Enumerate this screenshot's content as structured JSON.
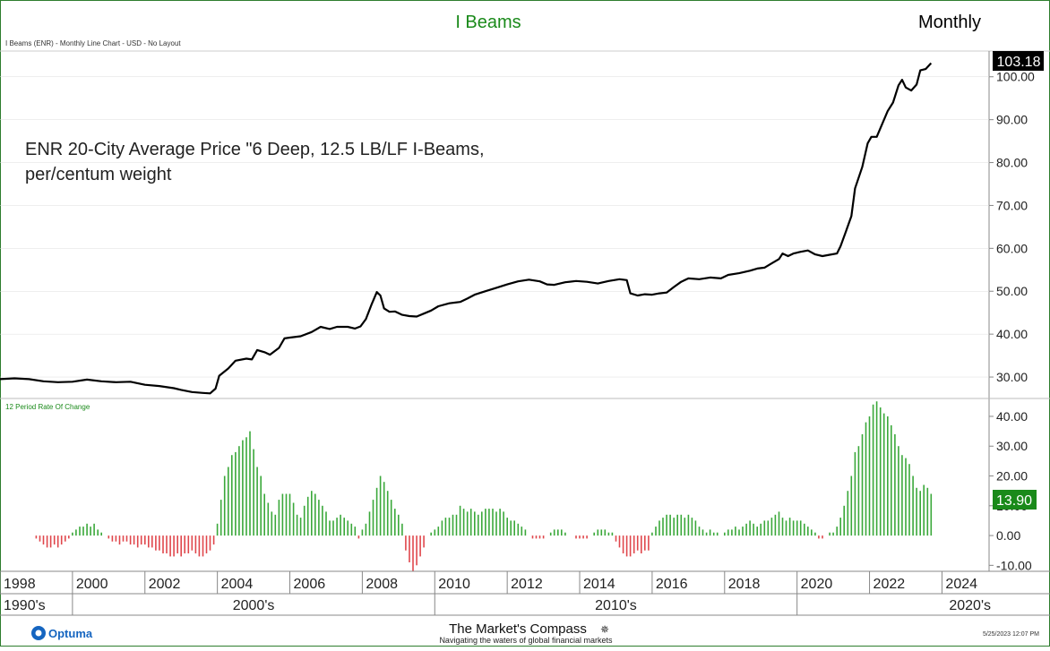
{
  "header": {
    "title": "I Beams",
    "period": "Monthly",
    "subtitle": "I Beams (ENR) - Monthly Line Chart - USD - No Layout"
  },
  "colors": {
    "title": "#1a8a1a",
    "line": "#000000",
    "positive": "#3aa83a",
    "negative": "#e0474c",
    "frame": "#2e7d2e",
    "grid": "#dddddd"
  },
  "footer": {
    "left_logo": "Optuma",
    "brand": "The Market's Compass",
    "tagline": "Navigating the waters of global financial markets",
    "timestamp": "5/25/2023 12:07 PM"
  },
  "chart_data": [
    {
      "type": "line",
      "annotation": "ENR 20-City Average Price \"6 Deep, 12.5 LB/LF I-Beams, per/centum weight",
      "last_value_label": "103.18",
      "ylim": [
        25,
        106
      ],
      "yticks": [
        "30.00",
        "40.00",
        "50.00",
        "60.00",
        "70.00",
        "80.00",
        "90.00",
        "100.00"
      ],
      "xlim": [
        1998.0,
        2025.3
      ],
      "x_ticks": [
        "1998",
        "2000",
        "2002",
        "2004",
        "2006",
        "2008",
        "2010",
        "2012",
        "2014",
        "2016",
        "2018",
        "2020",
        "2022",
        "2024"
      ],
      "decades": [
        "1990's",
        "2000's",
        "2010's",
        "2020's"
      ],
      "series": [
        {
          "values": [
            [
              1998.0,
              29.5
            ],
            [
              1998.4,
              29.7
            ],
            [
              1998.8,
              29.5
            ],
            [
              1999.2,
              29.0
            ],
            [
              1999.6,
              28.8
            ],
            [
              2000.0,
              28.9
            ],
            [
              2000.4,
              29.4
            ],
            [
              2000.8,
              29.0
            ],
            [
              2001.2,
              28.8
            ],
            [
              2001.6,
              28.9
            ],
            [
              2002.0,
              28.2
            ],
            [
              2002.4,
              27.9
            ],
            [
              2002.8,
              27.4
            ],
            [
              2003.0,
              27.0
            ],
            [
              2003.3,
              26.5
            ],
            [
              2003.6,
              26.3
            ],
            [
              2003.8,
              26.2
            ],
            [
              2003.95,
              27.3
            ],
            [
              2004.05,
              30.3
            ],
            [
              2004.3,
              32.0
            ],
            [
              2004.5,
              33.8
            ],
            [
              2004.8,
              34.3
            ],
            [
              2004.95,
              34.1
            ],
            [
              2005.1,
              36.3
            ],
            [
              2005.3,
              35.8
            ],
            [
              2005.45,
              35.2
            ],
            [
              2005.7,
              36.8
            ],
            [
              2005.85,
              39.0
            ],
            [
              2006.0,
              39.2
            ],
            [
              2006.3,
              39.5
            ],
            [
              2006.6,
              40.5
            ],
            [
              2006.85,
              41.7
            ],
            [
              2007.1,
              41.2
            ],
            [
              2007.3,
              41.7
            ],
            [
              2007.6,
              41.7
            ],
            [
              2007.8,
              41.3
            ],
            [
              2007.95,
              41.8
            ],
            [
              2008.1,
              43.5
            ],
            [
              2008.25,
              46.8
            ],
            [
              2008.4,
              49.8
            ],
            [
              2008.5,
              49.0
            ],
            [
              2008.6,
              46.0
            ],
            [
              2008.75,
              45.2
            ],
            [
              2008.9,
              45.3
            ],
            [
              2009.1,
              44.5
            ],
            [
              2009.3,
              44.2
            ],
            [
              2009.5,
              44.1
            ],
            [
              2009.7,
              44.8
            ],
            [
              2009.9,
              45.5
            ],
            [
              2010.1,
              46.5
            ],
            [
              2010.4,
              47.2
            ],
            [
              2010.7,
              47.5
            ],
            [
              2010.9,
              48.3
            ],
            [
              2011.1,
              49.2
            ],
            [
              2011.4,
              50.0
            ],
            [
              2011.7,
              50.8
            ],
            [
              2012.0,
              51.6
            ],
            [
              2012.3,
              52.3
            ],
            [
              2012.6,
              52.7
            ],
            [
              2012.9,
              52.3
            ],
            [
              2013.1,
              51.6
            ],
            [
              2013.3,
              51.5
            ],
            [
              2013.6,
              52.1
            ],
            [
              2013.9,
              52.4
            ],
            [
              2014.2,
              52.2
            ],
            [
              2014.5,
              51.8
            ],
            [
              2014.8,
              52.4
            ],
            [
              2015.1,
              52.8
            ],
            [
              2015.3,
              52.6
            ],
            [
              2015.4,
              49.5
            ],
            [
              2015.6,
              49.0
            ],
            [
              2015.8,
              49.3
            ],
            [
              2016.0,
              49.2
            ],
            [
              2016.2,
              49.5
            ],
            [
              2016.4,
              49.7
            ],
            [
              2016.6,
              51.0
            ],
            [
              2016.8,
              52.2
            ],
            [
              2017.0,
              53.0
            ],
            [
              2017.3,
              52.8
            ],
            [
              2017.6,
              53.2
            ],
            [
              2017.9,
              53.0
            ],
            [
              2018.1,
              53.8
            ],
            [
              2018.4,
              54.2
            ],
            [
              2018.7,
              54.8
            ],
            [
              2018.9,
              55.3
            ],
            [
              2019.1,
              55.5
            ],
            [
              2019.3,
              56.5
            ],
            [
              2019.5,
              57.5
            ],
            [
              2019.6,
              58.8
            ],
            [
              2019.75,
              58.2
            ],
            [
              2019.9,
              58.8
            ],
            [
              2020.1,
              59.2
            ],
            [
              2020.3,
              59.5
            ],
            [
              2020.5,
              58.6
            ],
            [
              2020.7,
              58.2
            ],
            [
              2020.9,
              58.5
            ],
            [
              2021.1,
              58.8
            ],
            [
              2021.2,
              60.5
            ],
            [
              2021.35,
              64.0
            ],
            [
              2021.5,
              67.5
            ],
            [
              2021.6,
              74.0
            ],
            [
              2021.8,
              79.0
            ],
            [
              2021.95,
              84.5
            ],
            [
              2022.05,
              86.0
            ],
            [
              2022.2,
              86.0
            ],
            [
              2022.35,
              89.0
            ],
            [
              2022.5,
              92.0
            ],
            [
              2022.65,
              94.0
            ],
            [
              2022.8,
              98.0
            ],
            [
              2022.9,
              99.3
            ],
            [
              2023.0,
              97.5
            ],
            [
              2023.15,
              96.8
            ],
            [
              2023.3,
              98.2
            ],
            [
              2023.4,
              101.5
            ],
            [
              2023.55,
              101.8
            ],
            [
              2023.7,
              103.18
            ]
          ]
        }
      ]
    },
    {
      "type": "bar",
      "title": "12 Period Rate Of Change",
      "last_value_label": "13.90",
      "ylim": [
        -12,
        46
      ],
      "yticks": [
        "-10.00",
        "0.00",
        "10.00",
        "20.00",
        "30.00",
        "40.00"
      ],
      "x": [
        1999.0,
        1999.1,
        1999.2,
        1999.3,
        1999.4,
        1999.5,
        1999.6,
        1999.7,
        1999.8,
        1999.9,
        2000.0,
        2000.1,
        2000.2,
        2000.3,
        2000.4,
        2000.5,
        2000.6,
        2000.7,
        2000.8,
        2000.9,
        2001.0,
        2001.1,
        2001.2,
        2001.3,
        2001.4,
        2001.5,
        2001.6,
        2001.7,
        2001.8,
        2001.9,
        2002.0,
        2002.1,
        2002.2,
        2002.3,
        2002.4,
        2002.5,
        2002.6,
        2002.7,
        2002.8,
        2002.9,
        2003.0,
        2003.1,
        2003.2,
        2003.3,
        2003.4,
        2003.5,
        2003.6,
        2003.7,
        2003.8,
        2003.9,
        2004.0,
        2004.1,
        2004.2,
        2004.3,
        2004.4,
        2004.5,
        2004.6,
        2004.7,
        2004.8,
        2004.9,
        2005.0,
        2005.1,
        2005.2,
        2005.3,
        2005.4,
        2005.5,
        2005.6,
        2005.7,
        2005.8,
        2005.9,
        2006.0,
        2006.1,
        2006.2,
        2006.3,
        2006.4,
        2006.5,
        2006.6,
        2006.7,
        2006.8,
        2006.9,
        2007.0,
        2007.1,
        2007.2,
        2007.3,
        2007.4,
        2007.5,
        2007.6,
        2007.7,
        2007.8,
        2007.9,
        2008.0,
        2008.1,
        2008.2,
        2008.3,
        2008.4,
        2008.5,
        2008.6,
        2008.7,
        2008.8,
        2008.9,
        2009.0,
        2009.1,
        2009.2,
        2009.3,
        2009.4,
        2009.5,
        2009.6,
        2009.7,
        2009.8,
        2009.9,
        2010.0,
        2010.1,
        2010.2,
        2010.3,
        2010.4,
        2010.5,
        2010.6,
        2010.7,
        2010.8,
        2010.9,
        2011.0,
        2011.1,
        2011.2,
        2011.3,
        2011.4,
        2011.5,
        2011.6,
        2011.7,
        2011.8,
        2011.9,
        2012.0,
        2012.1,
        2012.2,
        2012.3,
        2012.4,
        2012.5,
        2012.6,
        2012.7,
        2012.8,
        2012.9,
        2013.0,
        2013.1,
        2013.2,
        2013.3,
        2013.4,
        2013.5,
        2013.6,
        2013.7,
        2013.8,
        2013.9,
        2014.0,
        2014.1,
        2014.2,
        2014.3,
        2014.4,
        2014.5,
        2014.6,
        2014.7,
        2014.8,
        2014.9,
        2015.0,
        2015.1,
        2015.2,
        2015.3,
        2015.4,
        2015.5,
        2015.6,
        2015.7,
        2015.8,
        2015.9,
        2016.0,
        2016.1,
        2016.2,
        2016.3,
        2016.4,
        2016.5,
        2016.6,
        2016.7,
        2016.8,
        2016.9,
        2017.0,
        2017.1,
        2017.2,
        2017.3,
        2017.4,
        2017.5,
        2017.6,
        2017.7,
        2017.8,
        2017.9,
        2018.0,
        2018.1,
        2018.2,
        2018.3,
        2018.4,
        2018.5,
        2018.6,
        2018.7,
        2018.8,
        2018.9,
        2019.0,
        2019.1,
        2019.2,
        2019.3,
        2019.4,
        2019.5,
        2019.6,
        2019.7,
        2019.8,
        2019.9,
        2020.0,
        2020.1,
        2020.2,
        2020.3,
        2020.4,
        2020.5,
        2020.6,
        2020.7,
        2020.8,
        2020.9,
        2021.0,
        2021.1,
        2021.2,
        2021.3,
        2021.4,
        2021.5,
        2021.6,
        2021.7,
        2021.8,
        2021.9,
        2022.0,
        2022.1,
        2022.2,
        2022.3,
        2022.4,
        2022.5,
        2022.6,
        2022.7,
        2022.8,
        2022.9,
        2023.0,
        2023.1,
        2023.2,
        2023.3,
        2023.4,
        2023.5,
        2023.6,
        2023.7
      ],
      "values": [
        -1,
        -2,
        -3,
        -4,
        -4,
        -3,
        -4,
        -3,
        -2,
        -1,
        1,
        2,
        3,
        3,
        4,
        3,
        4,
        2,
        1,
        0,
        -1,
        -2,
        -2,
        -3,
        -2,
        -2,
        -3,
        -3,
        -4,
        -3,
        -3,
        -4,
        -4,
        -5,
        -5,
        -6,
        -6,
        -7,
        -7,
        -6,
        -7,
        -6,
        -6,
        -5,
        -6,
        -7,
        -7,
        -6,
        -5,
        -3,
        4,
        12,
        20,
        23,
        27,
        28,
        30,
        32,
        33,
        35,
        29,
        23,
        20,
        14,
        11,
        8,
        7,
        12,
        14,
        14,
        14,
        11,
        7,
        6,
        10,
        13,
        15,
        14,
        12,
        10,
        8,
        5,
        5,
        6,
        7,
        6,
        5,
        4,
        3,
        -1,
        2,
        4,
        8,
        12,
        16,
        20,
        18,
        15,
        12,
        9,
        7,
        4,
        -5,
        -9,
        -12,
        -10,
        -7,
        -4,
        0,
        1,
        2,
        3,
        5,
        6,
        6,
        7,
        7,
        10,
        9,
        8,
        9,
        8,
        7,
        8,
        9,
        9,
        9,
        8,
        9,
        8,
        6,
        5,
        5,
        4,
        3,
        2,
        0,
        -1,
        -1,
        -1,
        -1,
        0,
        1,
        2,
        2,
        2,
        1,
        0,
        0,
        -1,
        -1,
        -1,
        -1,
        0,
        1,
        2,
        2,
        2,
        1,
        1,
        -2,
        -4,
        -6,
        -7,
        -7,
        -6,
        -5,
        -6,
        -5,
        -5,
        1,
        3,
        5,
        6,
        7,
        7,
        6,
        7,
        7,
        6,
        7,
        6,
        5,
        3,
        2,
        1,
        2,
        1,
        1,
        0,
        1,
        2,
        2,
        3,
        2,
        3,
        4,
        5,
        4,
        3,
        4,
        5,
        5,
        6,
        7,
        8,
        6,
        5,
        6,
        5,
        5,
        5,
        4,
        3,
        2,
        1,
        -1,
        -1,
        0,
        1,
        1,
        3,
        6,
        10,
        15,
        20,
        28,
        30,
        34,
        38,
        40,
        44,
        45,
        43,
        41,
        40,
        37,
        34,
        30,
        27,
        26,
        24,
        20,
        16,
        15,
        17,
        16,
        14
      ]
    }
  ]
}
